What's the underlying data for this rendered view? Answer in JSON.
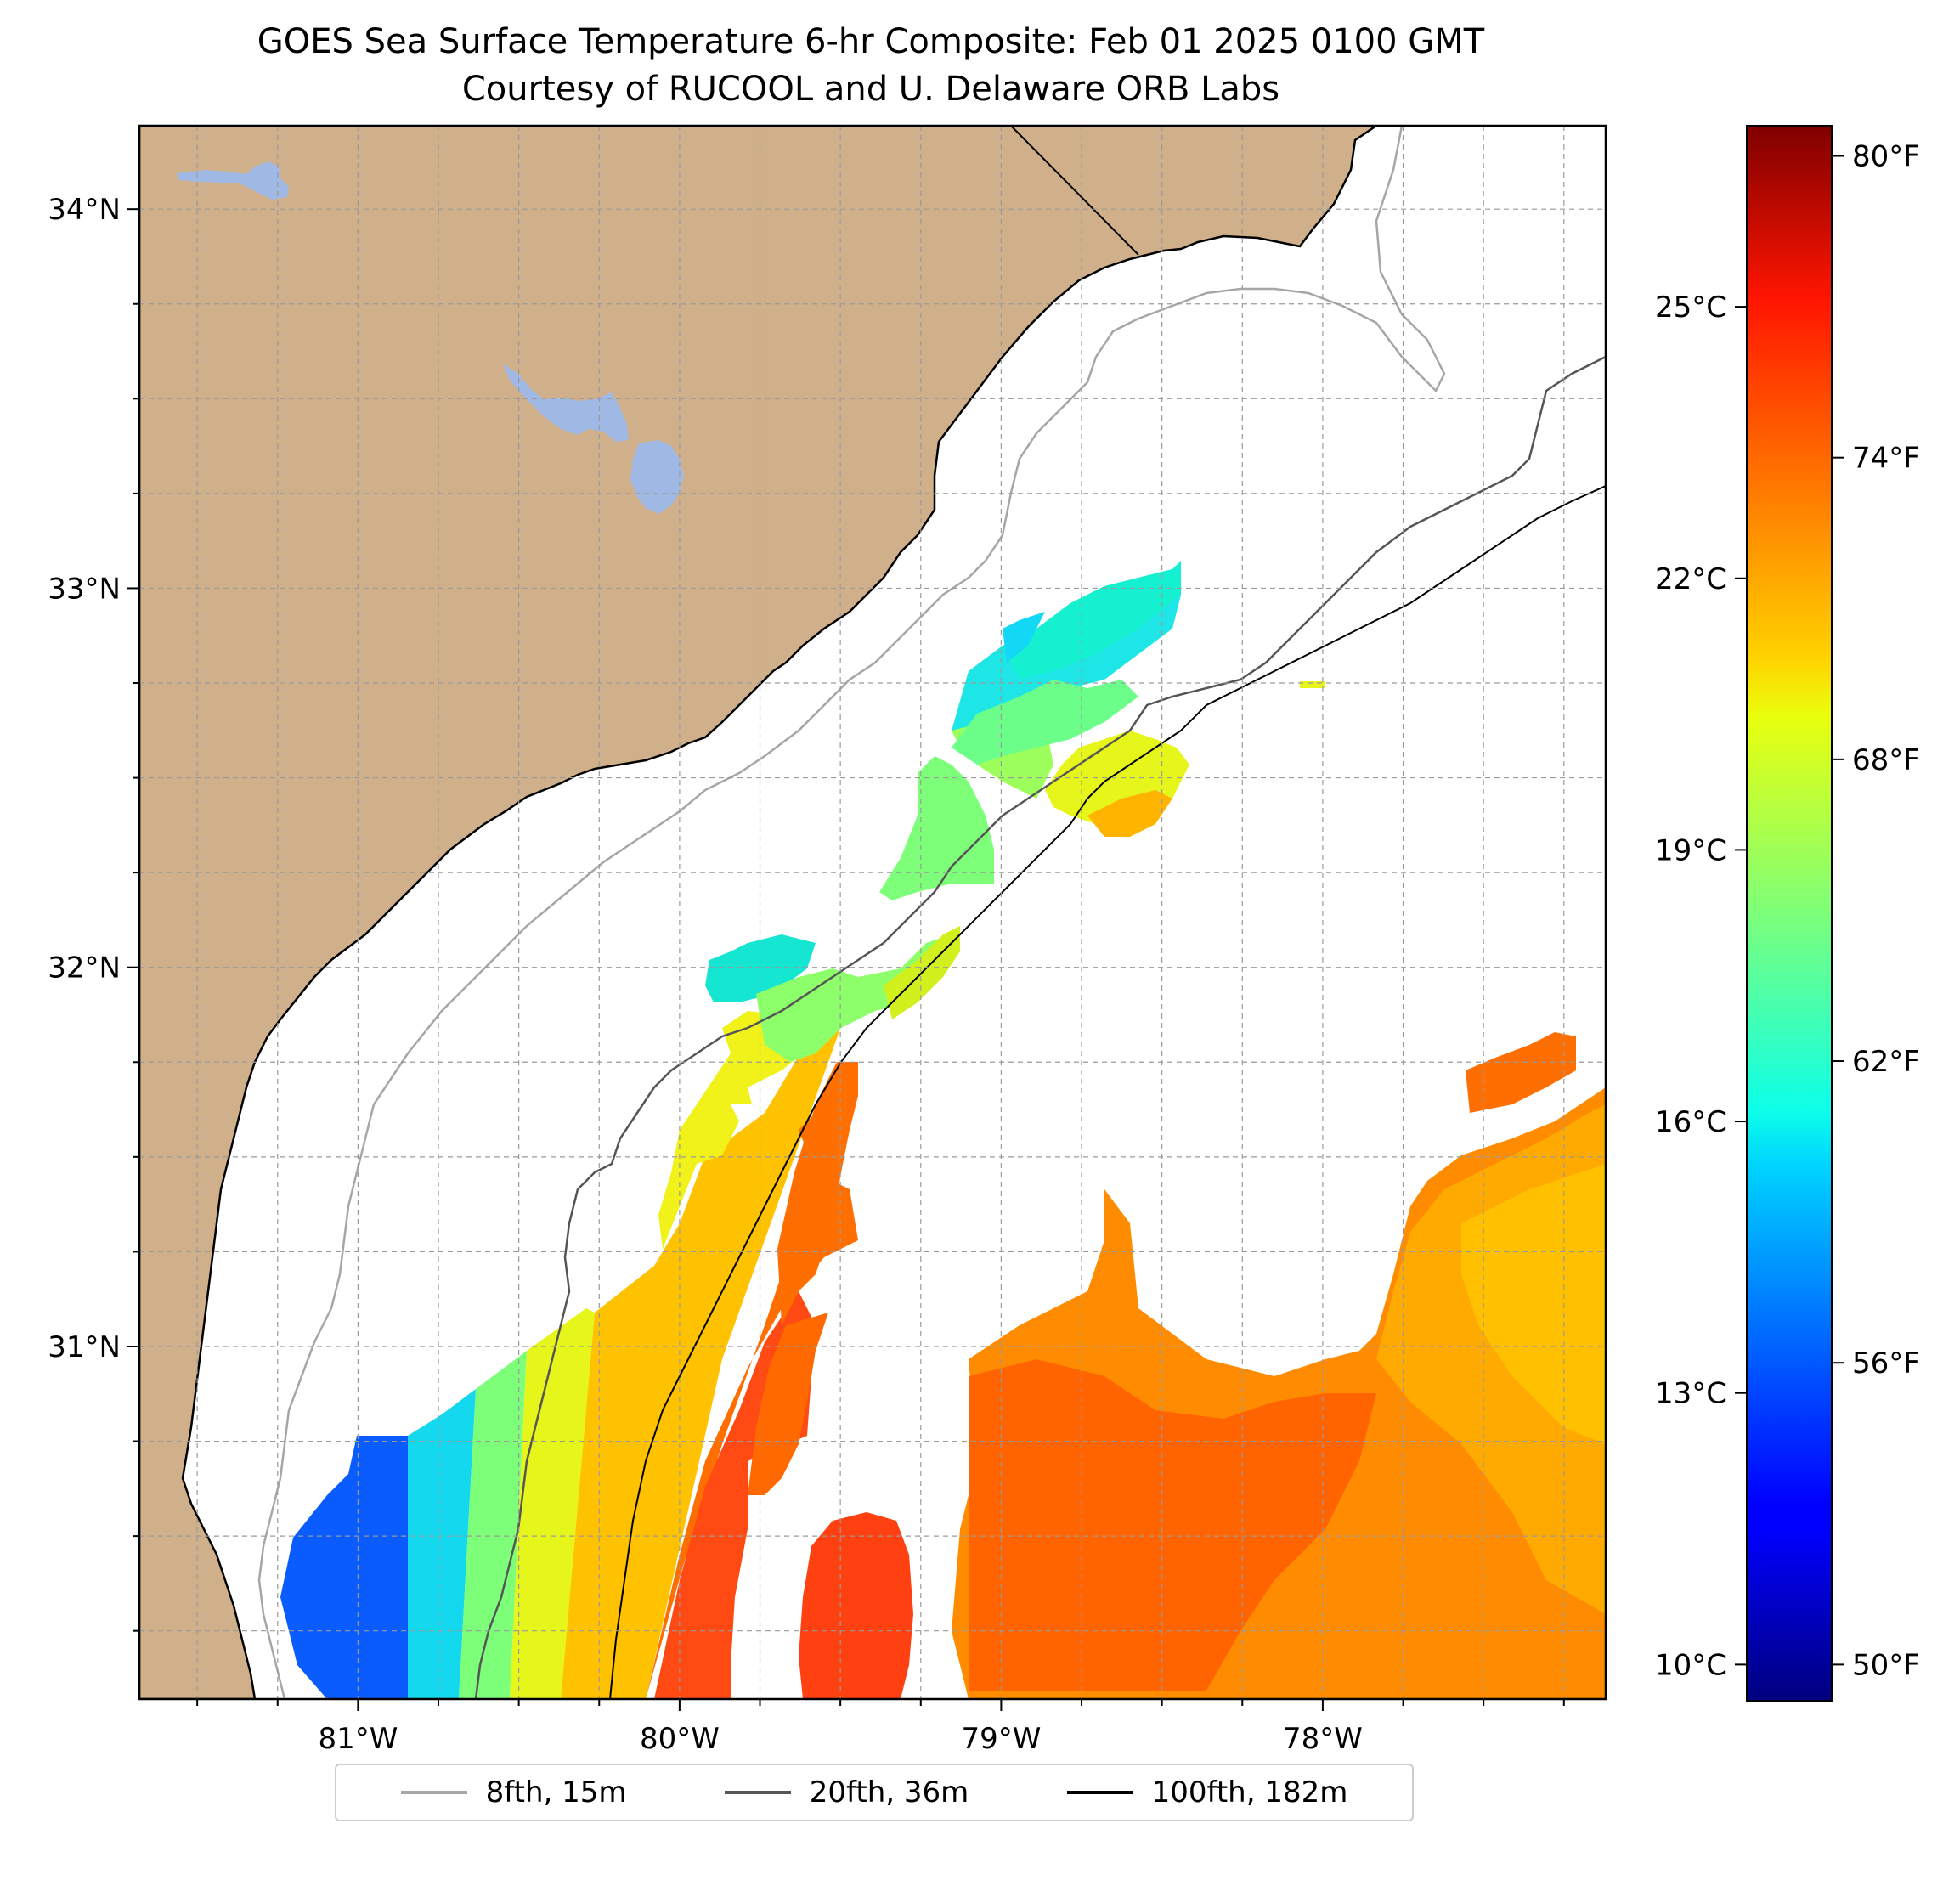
{
  "title": {
    "line1": "GOES Sea Surface Temperature 6-hr Composite: Feb 01 2025 0100 GMT",
    "line2": "Courtesy of RUCOOL and U. Delaware ORB Labs"
  },
  "map": {
    "lon_range": [
      -81.68,
      -77.12
    ],
    "lat_range": [
      30.07,
      34.22
    ],
    "lat_ticks": [
      {
        "value": 34,
        "label": "34°N"
      },
      {
        "value": 33,
        "label": "33°N"
      },
      {
        "value": 32,
        "label": "32°N"
      },
      {
        "value": 31,
        "label": "31°N"
      }
    ],
    "lon_ticks": [
      {
        "value": -81,
        "label": "81°W"
      },
      {
        "value": -80,
        "label": "80°W"
      },
      {
        "value": -79,
        "label": "79°W"
      },
      {
        "value": -78,
        "label": "78°W"
      }
    ],
    "grid": true,
    "grid_step_deg": 0.25,
    "land_color": "#cfb08a",
    "water_body_color": "#a0b8e4",
    "no_data_color": "#ffffff"
  },
  "colorbar": {
    "colormap": "jet",
    "range_c": [
      9.6,
      27.0
    ],
    "celsius_ticks": [
      {
        "value": 25,
        "label": "25°C"
      },
      {
        "value": 22,
        "label": "22°C"
      },
      {
        "value": 19,
        "label": "19°C"
      },
      {
        "value": 16,
        "label": "16°C"
      },
      {
        "value": 13,
        "label": "13°C"
      },
      {
        "value": 10,
        "label": "10°C"
      }
    ],
    "fahrenheit_ticks": [
      {
        "value": 80,
        "label": "80°F"
      },
      {
        "value": 74,
        "label": "74°F"
      },
      {
        "value": 68,
        "label": "68°F"
      },
      {
        "value": 62,
        "label": "62°F"
      },
      {
        "value": 56,
        "label": "56°F"
      },
      {
        "value": 50,
        "label": "50°F"
      }
    ]
  },
  "legend": {
    "placement": "bottom-center",
    "entries": [
      {
        "label": "8fth, 15m",
        "color": "#a6a6a6"
      },
      {
        "label": "20fth, 36m",
        "color": "#555555"
      },
      {
        "label": "100fth, 182m",
        "color": "#000000"
      }
    ]
  }
}
